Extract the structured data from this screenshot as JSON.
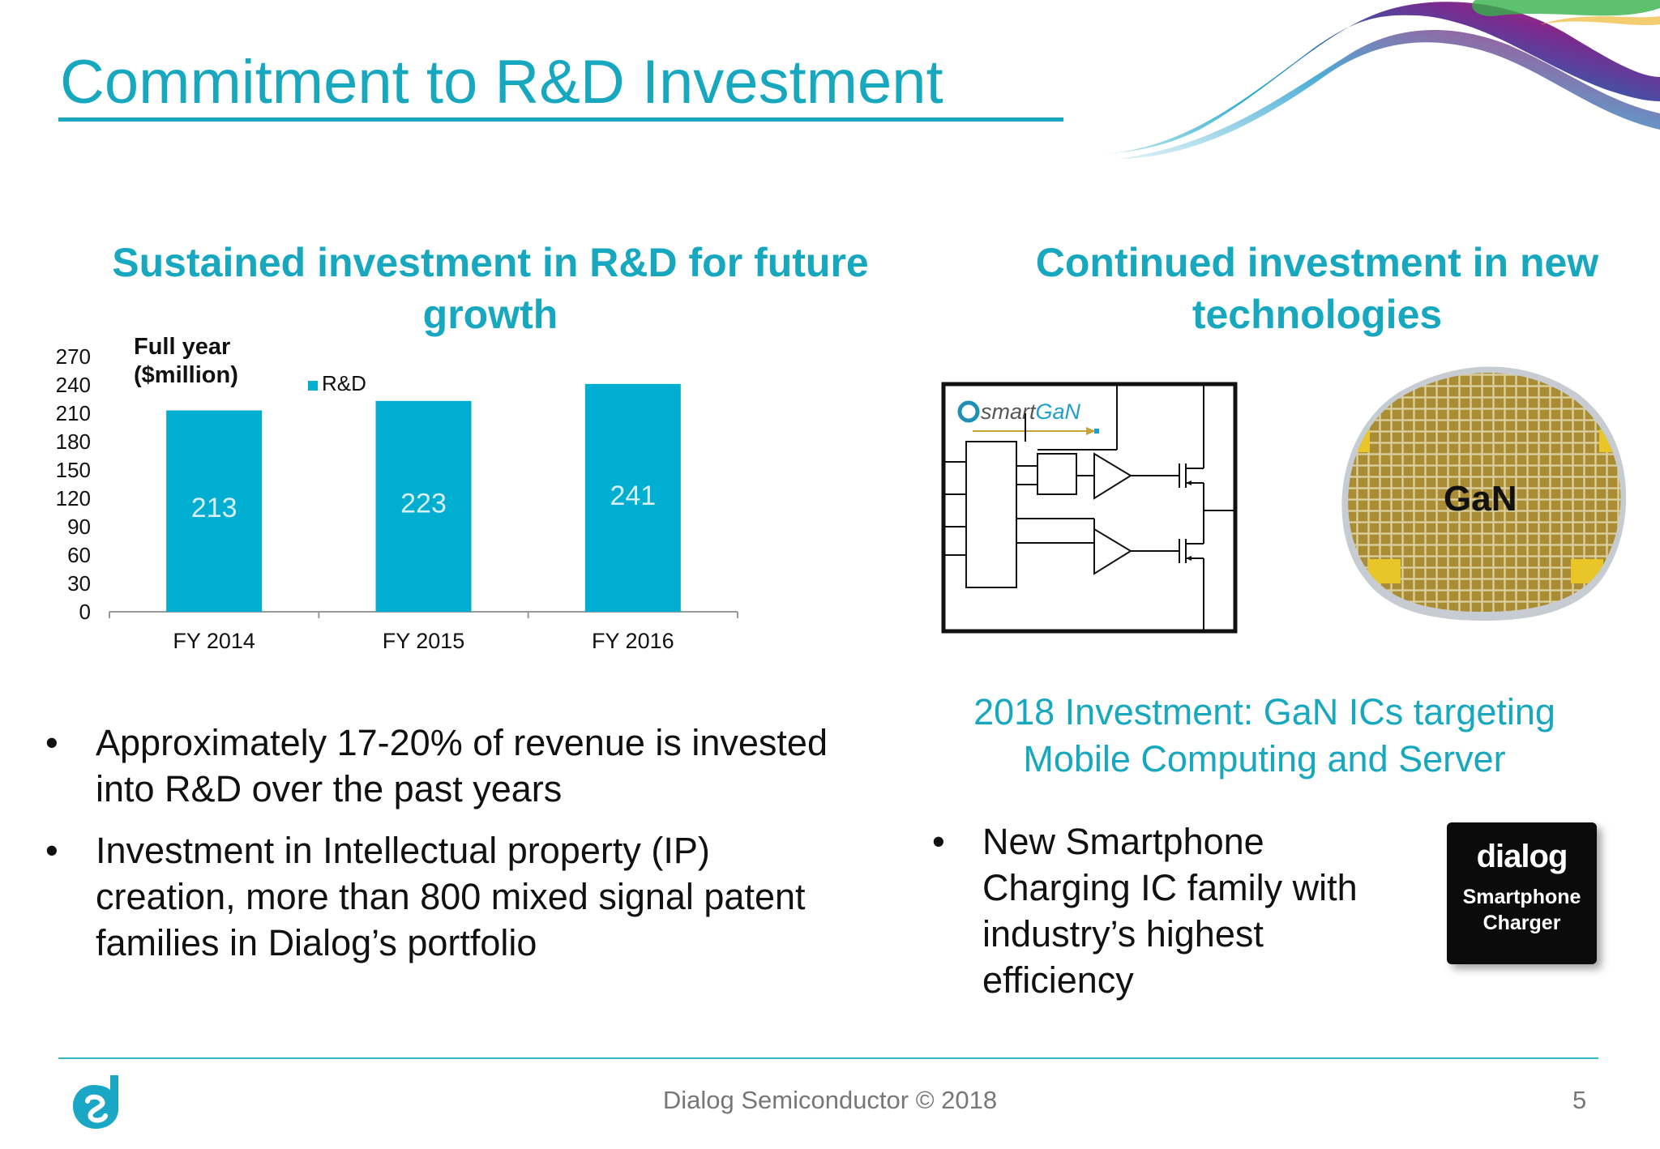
{
  "slide": {
    "title": "Commitment to R&D Investment",
    "left_heading": "Sustained investment in R&D for future growth",
    "right_heading": "Continued investment in new technologies",
    "accent_color": "#17a8bf"
  },
  "chart_data": {
    "type": "bar",
    "title": "Full year\n($million)",
    "categories": [
      "FY 2014",
      "FY 2015",
      "FY 2016"
    ],
    "series": [
      {
        "name": "R&D",
        "values": [
          213,
          223,
          241
        ],
        "color": "#00aed1"
      }
    ],
    "data_labels": [
      "213",
      "223",
      "241"
    ],
    "ylim": [
      0,
      270
    ],
    "yticks": [
      0,
      30,
      60,
      90,
      120,
      150,
      180,
      210,
      240,
      270
    ],
    "grid": false,
    "legend": "top"
  },
  "left_bullets": [
    "Approximately 17-20% of revenue is invested into R&D over the past years",
    "Investment in Intellectual property (IP) creation, more than 800 mixed signal patent families in Dialog’s portfolio"
  ],
  "bullet_symbol": "•",
  "circuit_logo": {
    "prefix": "smart",
    "suffix": "GaN"
  },
  "wafer_label": "GaN",
  "gan_caption": "2018 Investment: GaN ICs targeting Mobile Computing and Server",
  "right_bullets": [
    "New Smartphone Charging IC family with industry’s highest efficiency"
  ],
  "chip": {
    "brand": "dialog",
    "label_line1": "Smartphone",
    "label_line2": "Charger"
  },
  "footer": {
    "text": "Dialog Semiconductor © 2018",
    "page": "5"
  }
}
